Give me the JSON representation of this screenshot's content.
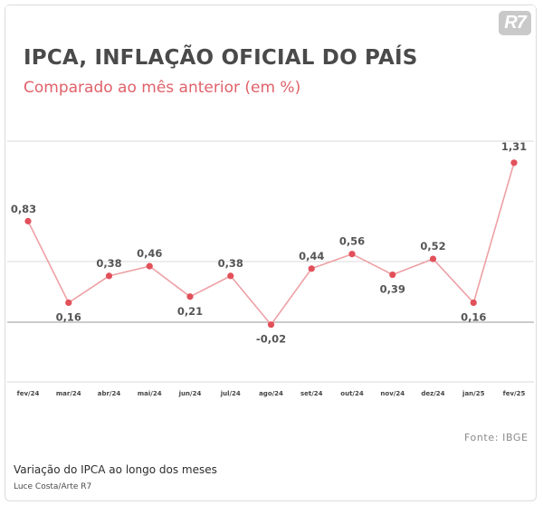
{
  "brand": {
    "logo_text": "R7"
  },
  "figure": {
    "caption": "Variação do IPCA ao longo dos meses",
    "credit": "Luce Costa/Arte R7"
  },
  "colors": {
    "title": "#4a4a4a",
    "subtitle": "#e0616a",
    "line": "#eda0a4",
    "point": "#e2505a"
  },
  "chart_data": {
    "type": "line",
    "title": "IPCA, INFLAÇÃO OFICIAL DO PAÍS",
    "subtitle": "Comparado ao mês anterior (em %)",
    "source": "Fonte: IBGE",
    "xlabel": "",
    "ylabel": "",
    "categories": [
      "fev/24",
      "mar/24",
      "abr/24",
      "mai/24",
      "jun/24",
      "jul/24",
      "ago/24",
      "set/24",
      "out/24",
      "nov/24",
      "dez/24",
      "jan/25",
      "fev/25"
    ],
    "series": [
      {
        "values": [
          0.83,
          0.16,
          0.38,
          0.46,
          0.21,
          0.38,
          -0.02,
          0.44,
          0.56,
          0.39,
          0.52,
          0.16,
          1.31
        ],
        "labels": [
          "0,83",
          "0,16",
          "0,38",
          "0,46",
          "0,21",
          "0,38",
          "-0,02",
          "0,44",
          "0,56",
          "0,39",
          "0,52",
          "0,16",
          "1,31"
        ]
      }
    ],
    "grid": true,
    "legend": "none"
  }
}
